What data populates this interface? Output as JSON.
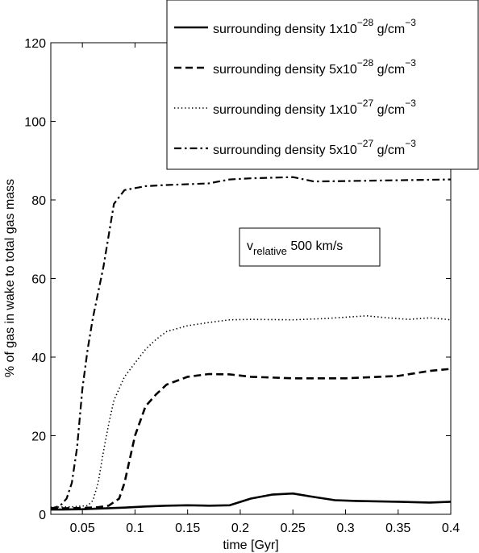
{
  "chart_data": {
    "type": "line",
    "xlabel": "time [Gyr]",
    "ylabel": "% of gas in wake to total gas mass",
    "xlim": [
      0.02,
      0.4
    ],
    "ylim": [
      0,
      120
    ],
    "xticks": [
      0.05,
      0.1,
      0.15,
      0.2,
      0.25,
      0.3,
      0.35,
      0.4
    ],
    "xtick_labels": [
      "0.05",
      "0.1",
      "0.15",
      "0.2",
      "0.25",
      "0.3",
      "0.35",
      "0.4"
    ],
    "yticks": [
      0,
      20,
      40,
      60,
      80,
      100,
      120
    ],
    "ytick_labels": [
      "0",
      "20",
      "40",
      "60",
      "80",
      "100",
      "120"
    ],
    "grid": false,
    "legend_position": "top-right, extending above axes",
    "annotation": {
      "main": "v",
      "sub": "relative",
      "rest": " 500 km/s"
    },
    "series": [
      {
        "name": "surrounding density 1x10^-28 g/cm^-3",
        "legend": {
          "prefix": "surrounding density 1x10",
          "exp": "−28",
          "unit": " g/cm",
          "unit_exp": "−3"
        },
        "style": "solid",
        "x": [
          0.02,
          0.03,
          0.05,
          0.07,
          0.09,
          0.11,
          0.13,
          0.15,
          0.17,
          0.19,
          0.21,
          0.23,
          0.25,
          0.27,
          0.29,
          0.31,
          0.35,
          0.38,
          0.4
        ],
        "y": [
          1.2,
          1.2,
          1.3,
          1.5,
          1.7,
          2.0,
          2.2,
          2.3,
          2.2,
          2.3,
          4.0,
          5.0,
          5.3,
          4.4,
          3.6,
          3.4,
          3.2,
          3.0,
          3.2
        ]
      },
      {
        "name": "surrounding density 5x10^-28 g/cm^-3",
        "legend": {
          "prefix": "surrounding density 5x10",
          "exp": "−28",
          "unit": " g/cm",
          "unit_exp": "−3"
        },
        "style": "dashed",
        "x": [
          0.02,
          0.05,
          0.065,
          0.075,
          0.085,
          0.09,
          0.1,
          0.11,
          0.12,
          0.13,
          0.15,
          0.17,
          0.19,
          0.21,
          0.25,
          0.3,
          0.35,
          0.38,
          0.4
        ],
        "y": [
          1.5,
          1.6,
          1.8,
          2.2,
          4.0,
          8.0,
          20.0,
          27.5,
          30.5,
          33.0,
          35.0,
          35.7,
          35.6,
          35.0,
          34.6,
          34.6,
          35.2,
          36.5,
          37.0
        ]
      },
      {
        "name": "surrounding density 1x10^-27 g/cm^-3",
        "legend": {
          "prefix": "surrounding density 1x10",
          "exp": "−27",
          "unit": " g/cm",
          "unit_exp": "−3"
        },
        "style": "dotted",
        "x": [
          0.02,
          0.04,
          0.055,
          0.06,
          0.065,
          0.07,
          0.075,
          0.08,
          0.09,
          0.1,
          0.11,
          0.12,
          0.13,
          0.15,
          0.17,
          0.19,
          0.21,
          0.25,
          0.28,
          0.32,
          0.34,
          0.36,
          0.38,
          0.4
        ],
        "y": [
          1.8,
          1.9,
          2.2,
          3.5,
          8.0,
          16.0,
          23.0,
          29.0,
          35.0,
          38.5,
          42.0,
          44.5,
          46.5,
          48.0,
          48.8,
          49.5,
          49.6,
          49.5,
          49.8,
          50.5,
          50.0,
          49.6,
          50.0,
          49.5
        ]
      },
      {
        "name": "surrounding density 5x10^-27 g/cm^-3",
        "legend": {
          "prefix": "surrounding density 5x10",
          "exp": "−27",
          "unit": " g/cm",
          "unit_exp": "−3"
        },
        "style": "dashdot",
        "x": [
          0.02,
          0.025,
          0.03,
          0.035,
          0.04,
          0.045,
          0.05,
          0.055,
          0.06,
          0.07,
          0.08,
          0.09,
          0.11,
          0.13,
          0.15,
          0.17,
          0.19,
          0.21,
          0.25,
          0.27,
          0.3,
          0.35,
          0.4
        ],
        "y": [
          1.5,
          1.8,
          2.5,
          4.0,
          8.0,
          17.0,
          32.0,
          42.0,
          50.0,
          63.0,
          79.0,
          82.5,
          83.5,
          83.8,
          84.0,
          84.2,
          85.2,
          85.5,
          85.8,
          84.7,
          84.8,
          85.0,
          85.2
        ]
      }
    ]
  }
}
